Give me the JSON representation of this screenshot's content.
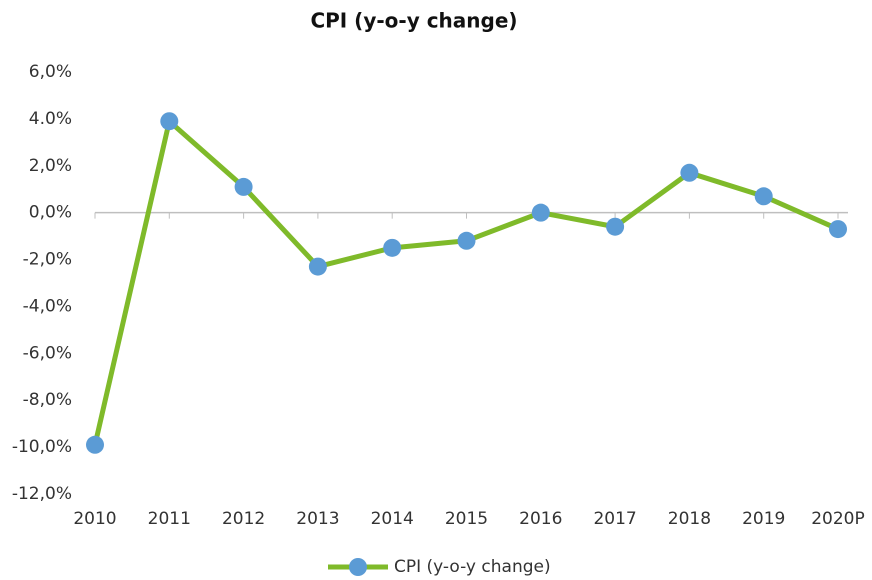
{
  "chart_data": {
    "type": "line",
    "title": "CPI (y-o-y change)",
    "categories": [
      "2010",
      "2011",
      "2012",
      "2013",
      "2014",
      "2015",
      "2016",
      "2017",
      "2018",
      "2019",
      "2020P"
    ],
    "series": [
      {
        "name": "CPI (y-o-y change)",
        "color": "#7fba2a",
        "marker_color": "#5b9bd5",
        "values": [
          -9.9,
          3.9,
          1.1,
          -2.3,
          -1.5,
          -1.2,
          0.0,
          -0.6,
          1.7,
          0.7,
          -0.7
        ]
      }
    ],
    "ylim": [
      -12,
      6
    ],
    "yticks": [
      {
        "value": 6,
        "label": "6,0%"
      },
      {
        "value": 4,
        "label": "4.0%"
      },
      {
        "value": 2,
        "label": "2,0%"
      },
      {
        "value": 0,
        "label": "0,0%"
      },
      {
        "value": -2,
        "label": "-2,0%"
      },
      {
        "value": -4,
        "label": "-4,0%"
      },
      {
        "value": -6,
        "label": "-6,0%"
      },
      {
        "value": -8,
        "label": "-8,0%"
      },
      {
        "value": -10,
        "label": "-10,0%"
      },
      {
        "value": -12,
        "label": "-12,0%"
      }
    ],
    "grid": false,
    "legend": "bottom"
  }
}
